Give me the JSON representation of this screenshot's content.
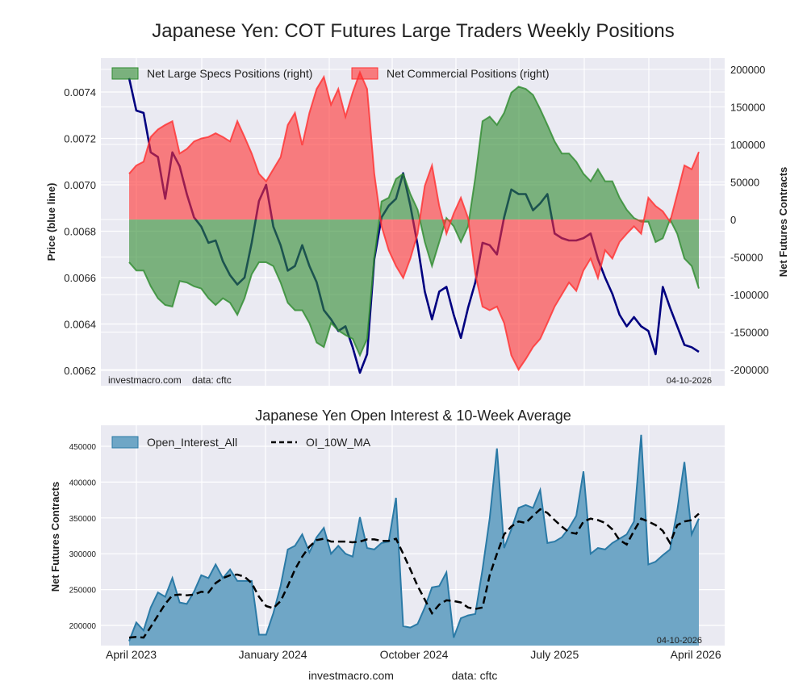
{
  "chart_data": [
    {
      "type": "area",
      "title": "Japanese Yen: COT Futures Large Traders Weekly Positions",
      "ylabel_left": "Price (blue line)",
      "ylabel_right": "Net Futures Contracts",
      "ylim_left": [
        0.0061,
        0.00755
      ],
      "ylim_right": [
        -210000,
        210000
      ],
      "yticks_left": [
        "0.0062",
        "0.0064",
        "0.0066",
        "0.0068",
        "0.0070",
        "0.0072",
        "0.0074"
      ],
      "yticks_right": [
        "-200000",
        "-150000",
        "-100000",
        "-50000",
        "0",
        "50000",
        "100000",
        "150000",
        "200000"
      ],
      "grid": true,
      "legend": "top-left",
      "footer_left": "investmacro.com    data: cftc",
      "footer_right": "04-10-2026",
      "colors": {
        "specs": "#2e8b2e",
        "commercial": "#ff3030",
        "price": "#000080"
      },
      "x": [
        "2023-03-28",
        "2023-04-11",
        "2023-04-25",
        "2023-05-09",
        "2023-05-23",
        "2023-06-06",
        "2023-06-20",
        "2023-07-04",
        "2023-07-18",
        "2023-08-01",
        "2023-08-15",
        "2023-08-29",
        "2023-09-12",
        "2023-09-26",
        "2023-10-10",
        "2023-10-24",
        "2023-11-07",
        "2023-11-21",
        "2023-12-05",
        "2023-12-19",
        "2024-01-02",
        "2024-01-16",
        "2024-01-30",
        "2024-02-13",
        "2024-02-27",
        "2024-03-12",
        "2024-03-26",
        "2024-04-09",
        "2024-04-23",
        "2024-05-07",
        "2024-05-21",
        "2024-06-04",
        "2024-06-18",
        "2024-07-02",
        "2024-07-16",
        "2024-07-30",
        "2024-08-13",
        "2024-08-27",
        "2024-09-10",
        "2024-09-24",
        "2024-10-08",
        "2024-10-22",
        "2024-11-05",
        "2024-11-19",
        "2024-12-03",
        "2024-12-17",
        "2024-12-31",
        "2025-01-14",
        "2025-01-28",
        "2025-02-11",
        "2025-02-25",
        "2025-03-11",
        "2025-03-25",
        "2025-04-08",
        "2025-04-22",
        "2025-05-06",
        "2025-05-20",
        "2025-06-03",
        "2025-06-17",
        "2025-07-01",
        "2025-07-15",
        "2025-07-29",
        "2025-08-12",
        "2025-08-26",
        "2025-09-09",
        "2025-09-23",
        "2025-10-07",
        "2025-10-21",
        "2025-11-04",
        "2025-11-18",
        "2025-12-02",
        "2025-12-16",
        "2025-12-30",
        "2026-01-13",
        "2026-01-27",
        "2026-02-10",
        "2026-02-24",
        "2026-03-10",
        "2026-03-24",
        "2026-04-07"
      ],
      "series": [
        {
          "name": "Net Large Specs Positions (right)",
          "axis": "right",
          "values": [
            -57000,
            -68000,
            -68000,
            -89000,
            -105000,
            -114000,
            -116000,
            -82000,
            -84000,
            -89000,
            -92000,
            -105000,
            -114000,
            -105000,
            -111000,
            -127000,
            -105000,
            -73000,
            -57000,
            -57000,
            -62000,
            -84000,
            -111000,
            -121000,
            -121000,
            -138000,
            -164000,
            -170000,
            -138000,
            -148000,
            -154000,
            -159000,
            -181000,
            -159000,
            -52000,
            24000,
            29000,
            54000,
            61000,
            34000,
            13000,
            -30000,
            -62000,
            -30000,
            2000,
            -9000,
            -30000,
            -9000,
            56000,
            131000,
            137000,
            126000,
            142000,
            169000,
            177000,
            174000,
            166000,
            147000,
            126000,
            104000,
            88000,
            88000,
            77000,
            61000,
            51000,
            67000,
            51000,
            51000,
            29000,
            13000,
            2000,
            -3000,
            -3000,
            -30000,
            -25000,
            0,
            -19000,
            -52000,
            -62000,
            -92000
          ]
        },
        {
          "name": "Net Commercial Positions (right)",
          "axis": "right",
          "values": [
            61000,
            72000,
            77000,
            110000,
            120000,
            126000,
            131000,
            88000,
            94000,
            104000,
            108000,
            110000,
            115000,
            110000,
            104000,
            131000,
            110000,
            88000,
            61000,
            51000,
            67000,
            83000,
            126000,
            142000,
            99000,
            142000,
            174000,
            190000,
            153000,
            174000,
            137000,
            169000,
            196000,
            174000,
            61000,
            -9000,
            -41000,
            -62000,
            -78000,
            -52000,
            -19000,
            45000,
            72000,
            18000,
            -19000,
            8000,
            29000,
            2000,
            -73000,
            -116000,
            -121000,
            -116000,
            -138000,
            -181000,
            -200000,
            -186000,
            -170000,
            -159000,
            -138000,
            -116000,
            -100000,
            -84000,
            -95000,
            -68000,
            -52000,
            -78000,
            -41000,
            -52000,
            -30000,
            -19000,
            -9000,
            -19000,
            29000,
            18000,
            11000,
            -3000,
            34000,
            72000,
            67000,
            90000
          ]
        },
        {
          "name": "Price",
          "axis": "left",
          "values": [
            0.00746,
            0.00732,
            0.00731,
            0.00714,
            0.00712,
            0.00694,
            0.00714,
            0.00708,
            0.00696,
            0.00686,
            0.00682,
            0.00675,
            0.00676,
            0.00667,
            0.00661,
            0.00657,
            0.0066,
            0.00675,
            0.00693,
            0.007,
            0.00682,
            0.00674,
            0.00663,
            0.00665,
            0.00674,
            0.00665,
            0.00658,
            0.00646,
            0.00642,
            0.00637,
            0.00639,
            0.0063,
            0.00619,
            0.00627,
            0.00668,
            0.00686,
            0.00691,
            0.00694,
            0.00705,
            0.00691,
            0.00674,
            0.00654,
            0.00642,
            0.00654,
            0.00656,
            0.00644,
            0.00634,
            0.00647,
            0.00658,
            0.00675,
            0.00674,
            0.0067,
            0.00686,
            0.00698,
            0.00696,
            0.00696,
            0.00689,
            0.00692,
            0.00696,
            0.00679,
            0.00677,
            0.00676,
            0.00676,
            0.00677,
            0.00679,
            0.00668,
            0.0066,
            0.00653,
            0.00644,
            0.00639,
            0.00643,
            0.00639,
            0.00637,
            0.00627,
            0.00656,
            0.00647,
            0.00639,
            0.00631,
            0.0063,
            0.00628
          ]
        }
      ]
    },
    {
      "type": "area",
      "title": "Japanese Yen Open Interest & 10-Week Average",
      "ylabel": "Net Futures Contracts",
      "ylim": [
        173000,
        480000
      ],
      "yticks": [
        "200000",
        "250000",
        "300000",
        "350000",
        "400000",
        "450000"
      ],
      "xtick_labels": [
        {
          "label": "April 2023",
          "date": "2023-04-01"
        },
        {
          "label": "January 2024",
          "date": "2024-01-01"
        },
        {
          "label": "October 2024",
          "date": "2024-10-01"
        },
        {
          "label": "July 2025",
          "date": "2025-07-01"
        },
        {
          "label": "April 2026",
          "date": "2026-04-01"
        }
      ],
      "grid": true,
      "legend": "top-left",
      "date_stamp": "04-10-2026",
      "colors": {
        "oi_fill": "#6fa6c6",
        "oi_line": "#2b7aa6",
        "ma": "#000000"
      },
      "series": [
        {
          "name": "Open_Interest_All",
          "values": [
            178000,
            204000,
            193000,
            225000,
            246000,
            240000,
            266000,
            232000,
            230000,
            247000,
            270000,
            266000,
            285000,
            266000,
            278000,
            262000,
            262000,
            262000,
            187000,
            187000,
            217000,
            255000,
            306000,
            311000,
            327000,
            302000,
            323000,
            336000,
            300000,
            311000,
            300000,
            296000,
            351000,
            308000,
            306000,
            315000,
            317000,
            378000,
            199000,
            197000,
            202000,
            225000,
            253000,
            255000,
            274000,
            183000,
            210000,
            214000,
            216000,
            278000,
            349000,
            447000,
            308000,
            334000,
            364000,
            368000,
            364000,
            389000,
            315000,
            317000,
            323000,
            336000,
            353000,
            415000,
            300000,
            308000,
            306000,
            315000,
            321000,
            327000,
            345000,
            466000,
            285000,
            289000,
            298000,
            306000,
            360000,
            428000,
            327000,
            349000
          ]
        },
        {
          "name": "OI_10W_MA",
          "style": "dashed",
          "values": [
            183000,
            184000,
            183000,
            198000,
            214000,
            230000,
            242000,
            243000,
            242000,
            243000,
            247000,
            246000,
            259000,
            266000,
            270000,
            271000,
            268000,
            259000,
            240000,
            227000,
            224000,
            234000,
            255000,
            278000,
            296000,
            310000,
            319000,
            321000,
            317000,
            317000,
            317000,
            316000,
            317000,
            320000,
            320000,
            318000,
            318000,
            321000,
            300000,
            278000,
            255000,
            236000,
            217000,
            229000,
            235000,
            234000,
            232000,
            225000,
            223000,
            225000,
            270000,
            300000,
            327000,
            338000,
            345000,
            343000,
            353000,
            362000,
            357000,
            347000,
            338000,
            330000,
            328000,
            345000,
            349000,
            347000,
            343000,
            334000,
            319000,
            313000,
            332000,
            349000,
            345000,
            340000,
            332000,
            315000,
            340000,
            345000,
            347000,
            356000
          ]
        }
      ]
    }
  ],
  "footer": {
    "site": "investmacro.com",
    "source": "data: cftc"
  }
}
